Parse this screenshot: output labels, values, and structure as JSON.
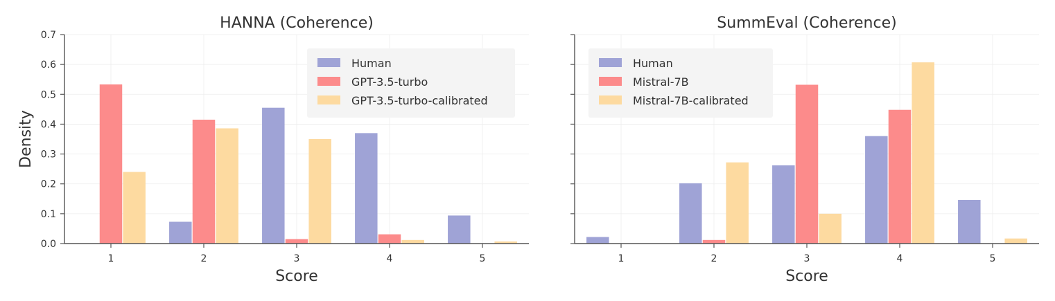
{
  "ylabel": "Density",
  "colors": {
    "human": "#9fa3d6",
    "model": "#fc8b8b",
    "calibrated": "#fddaa0"
  },
  "chart_data": [
    {
      "type": "bar",
      "title": "HANNA (Coherence)",
      "xlabel": "Score",
      "ylabel": "Density",
      "ylim": [
        0,
        0.7
      ],
      "yticks": [
        "0.0",
        "0.1",
        "0.2",
        "0.3",
        "0.4",
        "0.5",
        "0.6",
        "0.7"
      ],
      "categories": [
        "1",
        "2",
        "3",
        "4",
        "5"
      ],
      "grid": true,
      "legend_position": "top-right",
      "series": [
        {
          "name": "Human",
          "color_key": "human",
          "values": [
            0.0,
            0.073,
            0.455,
            0.37,
            0.094
          ]
        },
        {
          "name": "GPT-3.5-turbo",
          "color_key": "model",
          "values": [
            0.533,
            0.415,
            0.015,
            0.031,
            0.0
          ]
        },
        {
          "name": "GPT-3.5-turbo-calibrated",
          "color_key": "calibrated",
          "values": [
            0.24,
            0.386,
            0.35,
            0.012,
            0.007
          ]
        }
      ]
    },
    {
      "type": "bar",
      "title": "SummEval (Coherence)",
      "xlabel": "Score",
      "ylim": [
        0,
        0.7
      ],
      "categories": [
        "1",
        "2",
        "3",
        "4",
        "5"
      ],
      "grid": true,
      "legend_position": "top-left",
      "series": [
        {
          "name": "Human",
          "color_key": "human",
          "values": [
            0.022,
            0.202,
            0.262,
            0.36,
            0.146
          ]
        },
        {
          "name": "Mistral-7B",
          "color_key": "model",
          "values": [
            0.0,
            0.012,
            0.532,
            0.448,
            0.0
          ]
        },
        {
          "name": "Mistral-7B-calibrated",
          "color_key": "calibrated",
          "values": [
            0.0,
            0.272,
            0.1,
            0.607,
            0.017
          ]
        }
      ]
    }
  ]
}
